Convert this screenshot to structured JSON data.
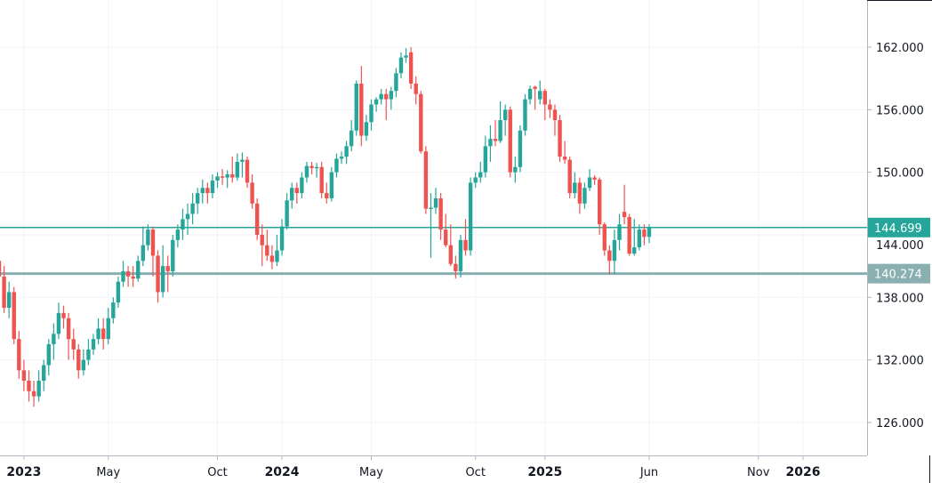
{
  "chart_data": {
    "type": "candlestick",
    "interval": "weekly",
    "colors": {
      "up": "#26a69a",
      "down": "#ef5350",
      "line_upper": "#26a69a",
      "line_lower": "#8aafb1",
      "grid": "#f0f3fa"
    },
    "ylim": [
      122,
      166
    ],
    "y_ticks": [
      "162.000",
      "156.000",
      "150.000",
      "144.000",
      "138.000",
      "132.000",
      "126.000"
    ],
    "x_ticks": [
      {
        "label": "2023",
        "date": "2023-01-02",
        "bold": true
      },
      {
        "label": "May",
        "date": "2023-05-01",
        "bold": false
      },
      {
        "label": "Oct",
        "date": "2023-10-02",
        "bold": false
      },
      {
        "label": "2024",
        "date": "2024-01-01",
        "bold": true
      },
      {
        "label": "May",
        "date": "2024-05-06",
        "bold": false
      },
      {
        "label": "Oct",
        "date": "2024-09-30",
        "bold": false
      },
      {
        "label": "2025",
        "date": "2025-01-06",
        "bold": true
      },
      {
        "label": "Jun",
        "date": "2025-06-02",
        "bold": false
      },
      {
        "label": "Nov",
        "date": "2025-11-03",
        "bold": false
      },
      {
        "label": "2026",
        "date": "2026-01-05",
        "bold": true
      }
    ],
    "horizontal_lines": [
      {
        "value": 144.699,
        "label": "144.699",
        "color": "#26a69a"
      },
      {
        "value": 140.274,
        "label": "140.274",
        "color": "#8aafb1"
      }
    ],
    "candles_columns": [
      "date",
      "open",
      "high",
      "low",
      "close"
    ],
    "candles": [
      [
        "2022-11-28",
        141.5,
        142,
        139.2,
        140
      ],
      [
        "2022-12-05",
        140,
        141,
        136.5,
        137
      ],
      [
        "2022-12-12",
        137,
        139.5,
        136,
        138.5
      ],
      [
        "2022-12-19",
        138.5,
        139,
        133.5,
        134
      ],
      [
        "2022-12-26",
        134,
        134.8,
        130.2,
        131
      ],
      [
        "2023-01-02",
        131,
        132,
        129,
        130
      ],
      [
        "2023-01-09",
        130,
        131,
        128,
        129
      ],
      [
        "2023-01-16",
        129,
        130,
        127.5,
        128.5
      ],
      [
        "2023-01-23",
        128.5,
        131,
        128,
        130
      ],
      [
        "2023-01-30",
        130,
        132,
        129,
        131.5
      ],
      [
        "2023-02-06",
        131.5,
        134,
        130.5,
        133.5
      ],
      [
        "2023-02-13",
        133.5,
        135.5,
        132,
        134.5
      ],
      [
        "2023-02-20",
        134.5,
        137.5,
        134,
        136.5
      ],
      [
        "2023-02-27",
        136.5,
        137.2,
        135,
        136
      ],
      [
        "2023-03-06",
        136,
        136.5,
        132,
        134
      ],
      [
        "2023-03-13",
        134,
        135,
        132,
        133
      ],
      [
        "2023-03-20",
        133,
        133.5,
        130.2,
        131
      ],
      [
        "2023-03-27",
        131,
        133,
        130.5,
        132
      ],
      [
        "2023-04-03",
        132,
        134,
        131.5,
        133
      ],
      [
        "2023-04-10",
        133,
        134.5,
        132.5,
        134
      ],
      [
        "2023-04-17",
        134,
        136,
        133.5,
        135
      ],
      [
        "2023-04-24",
        135,
        136,
        133,
        134
      ],
      [
        "2023-05-01",
        134,
        137,
        133.5,
        136
      ],
      [
        "2023-05-08",
        136,
        138,
        135.5,
        137.5
      ],
      [
        "2023-05-15",
        137.5,
        140,
        137,
        139.5
      ],
      [
        "2023-05-22",
        139.5,
        141.5,
        139,
        140.5
      ],
      [
        "2023-05-29",
        140.5,
        141,
        139,
        140
      ],
      [
        "2023-06-05",
        140,
        141,
        139,
        139.8
      ],
      [
        "2023-06-12",
        139.8,
        142,
        139.5,
        141.5
      ],
      [
        "2023-06-19",
        141.5,
        144.8,
        141,
        143
      ],
      [
        "2023-06-26",
        143,
        145,
        142.5,
        144.5
      ],
      [
        "2023-07-03",
        144.5,
        144.8,
        140,
        142
      ],
      [
        "2023-07-10",
        142,
        142.5,
        137.5,
        138.5
      ],
      [
        "2023-07-17",
        138.5,
        143,
        138,
        141
      ],
      [
        "2023-07-24",
        141,
        142,
        138.5,
        140.5
      ],
      [
        "2023-07-31",
        140.5,
        144,
        140,
        143.5
      ],
      [
        "2023-08-07",
        143.5,
        145,
        142.8,
        144.5
      ],
      [
        "2023-08-14",
        144.5,
        146.5,
        143.5,
        145.5
      ],
      [
        "2023-08-21",
        145.5,
        147,
        144,
        146
      ],
      [
        "2023-08-28",
        146,
        148,
        145,
        147
      ],
      [
        "2023-09-04",
        147,
        148.5,
        146,
        148
      ],
      [
        "2023-09-11",
        148,
        149.3,
        147,
        148.5
      ],
      [
        "2023-09-18",
        148.5,
        149,
        147,
        148
      ],
      [
        "2023-09-25",
        148,
        149.8,
        147.5,
        149.2
      ],
      [
        "2023-10-02",
        149.2,
        150,
        148.5,
        149.6
      ],
      [
        "2023-10-09",
        149.6,
        150.3,
        148.8,
        149.5
      ],
      [
        "2023-10-16",
        149.5,
        150.2,
        148.5,
        149.8
      ],
      [
        "2023-10-23",
        149.8,
        151.5,
        149,
        149.5
      ],
      [
        "2023-10-30",
        149.5,
        151.8,
        149.2,
        151
      ],
      [
        "2023-11-06",
        151,
        151.9,
        149.5,
        151.2
      ],
      [
        "2023-11-13",
        151.2,
        151.5,
        148.5,
        149
      ],
      [
        "2023-11-20",
        149,
        149.8,
        146.5,
        147
      ],
      [
        "2023-11-27",
        147,
        147.5,
        143.5,
        144
      ],
      [
        "2023-12-04",
        144,
        145,
        141,
        143
      ],
      [
        "2023-12-11",
        143,
        144.5,
        141.5,
        142
      ],
      [
        "2023-12-18",
        142,
        143,
        140.7,
        141.4
      ],
      [
        "2023-12-25",
        141.4,
        144,
        141,
        142.5
      ],
      [
        "2024-01-01",
        142.5,
        145.5,
        142,
        144.8
      ],
      [
        "2024-01-08",
        144.8,
        148,
        144.5,
        147.3
      ],
      [
        "2024-01-15",
        147.3,
        149,
        146.5,
        148.5
      ],
      [
        "2024-01-22",
        148.5,
        149,
        147,
        148
      ],
      [
        "2024-01-29",
        148,
        150,
        147.5,
        149.5
      ],
      [
        "2024-02-05",
        149.5,
        151,
        149,
        150.6
      ],
      [
        "2024-02-12",
        150.6,
        151,
        149.8,
        150.4
      ],
      [
        "2024-02-19",
        150.4,
        150.9,
        149.5,
        150.5
      ],
      [
        "2024-02-26",
        150.5,
        151,
        147.5,
        148
      ],
      [
        "2024-03-04",
        148,
        149,
        147,
        147.5
      ],
      [
        "2024-03-11",
        147.5,
        150.5,
        147.2,
        150
      ],
      [
        "2024-03-18",
        150,
        151.8,
        149.5,
        151.3
      ],
      [
        "2024-03-25",
        151.3,
        152,
        150.8,
        151.5
      ],
      [
        "2024-04-01",
        151.5,
        153,
        150.8,
        152.5
      ],
      [
        "2024-04-08",
        152.5,
        155,
        152,
        154
      ],
      [
        "2024-04-15",
        154,
        158.8,
        153.5,
        158.5
      ],
      [
        "2024-04-22",
        158.5,
        160.2,
        152.5,
        153.5
      ],
      [
        "2024-04-29",
        153.5,
        155.5,
        153,
        154.8
      ],
      [
        "2024-05-06",
        154.8,
        157,
        154,
        156.5
      ],
      [
        "2024-05-13",
        156.5,
        157.2,
        155.8,
        157
      ],
      [
        "2024-05-20",
        157,
        158,
        156.5,
        157.5
      ],
      [
        "2024-05-27",
        157.5,
        158,
        155,
        157
      ],
      [
        "2024-06-03",
        157,
        158.2,
        156,
        157.8
      ],
      [
        "2024-06-10",
        157.8,
        160,
        157.2,
        159.5
      ],
      [
        "2024-06-17",
        159.5,
        161.5,
        159,
        161
      ],
      [
        "2024-06-24",
        161,
        161.9,
        160.5,
        161.2
      ],
      [
        "2024-07-01",
        161.5,
        162,
        158,
        158.5
      ],
      [
        "2024-07-08",
        158.5,
        159.2,
        156.5,
        157.5
      ],
      [
        "2024-07-15",
        157.5,
        157.8,
        151.8,
        152
      ],
      [
        "2024-07-22",
        152,
        152.5,
        146,
        146.5
      ],
      [
        "2024-07-29",
        146.5,
        148,
        141.8,
        146.6
      ],
      [
        "2024-08-05",
        146.6,
        148.5,
        146,
        147.5
      ],
      [
        "2024-08-12",
        147.5,
        148,
        143.5,
        144.5
      ],
      [
        "2024-08-19",
        144.5,
        146,
        142.8,
        143
      ],
      [
        "2024-08-26",
        143,
        145,
        141,
        141.2
      ],
      [
        "2024-09-02",
        141.2,
        142,
        139.8,
        140.5
      ],
      [
        "2024-09-09",
        140.5,
        144,
        139.9,
        143.5
      ],
      [
        "2024-09-16",
        143.5,
        145.5,
        142,
        142.5
      ],
      [
        "2024-09-23",
        142.5,
        149.5,
        142,
        149
      ],
      [
        "2024-09-30",
        149,
        150,
        148.5,
        149.5
      ],
      [
        "2024-10-07",
        149.5,
        151,
        149,
        150
      ],
      [
        "2024-10-14",
        150,
        153.5,
        149.5,
        152.5
      ],
      [
        "2024-10-21",
        152.5,
        154.5,
        151,
        153.2
      ],
      [
        "2024-10-28",
        153.2,
        155,
        152.5,
        153
      ],
      [
        "2024-11-04",
        153,
        156.8,
        152.8,
        155
      ],
      [
        "2024-11-11",
        155,
        156.5,
        153.5,
        156
      ],
      [
        "2024-11-18",
        156,
        156.3,
        149.5,
        150
      ],
      [
        "2024-11-25",
        150,
        151.5,
        149,
        150.5
      ],
      [
        "2024-12-02",
        150.5,
        154.5,
        150,
        154
      ],
      [
        "2024-12-09",
        154,
        157.5,
        153.5,
        157
      ],
      [
        "2024-12-16",
        157,
        158.3,
        156.5,
        158
      ],
      [
        "2024-12-23",
        158.2,
        158.3,
        156,
        158
      ],
      [
        "2024-12-30",
        157,
        158.8,
        156.5,
        157.8
      ],
      [
        "2025-01-06",
        157.8,
        158,
        155,
        156.5
      ],
      [
        "2025-01-13",
        156.5,
        157,
        155.2,
        156
      ],
      [
        "2025-01-20",
        156,
        156.5,
        153.5,
        155
      ],
      [
        "2025-01-27",
        155,
        155.5,
        151,
        151.5
      ],
      [
        "2025-02-03",
        151.5,
        153,
        150.8,
        151.2
      ],
      [
        "2025-02-10",
        151.2,
        151.5,
        147.5,
        148
      ],
      [
        "2025-02-17",
        148,
        150,
        147.5,
        149
      ],
      [
        "2025-02-24",
        149,
        149.5,
        146,
        147
      ],
      [
        "2025-03-03",
        147,
        149,
        146.5,
        148.5
      ],
      [
        "2025-03-10",
        148.5,
        150.3,
        148.2,
        149.5
      ],
      [
        "2025-03-17",
        149.5,
        149.7,
        148.8,
        149.3
      ],
      [
        "2025-03-24",
        149.3,
        149.5,
        144,
        145
      ],
      [
        "2025-03-31",
        145,
        145.2,
        142,
        142.5
      ],
      [
        "2025-04-07",
        142.5,
        143,
        140.2,
        141.5
      ],
      [
        "2025-04-14",
        141.5,
        144.5,
        140.2,
        143.5
      ],
      [
        "2025-04-21",
        143.5,
        146,
        142.5,
        145
      ],
      [
        "2025-04-28",
        146.2,
        148.8,
        145,
        145.7
      ],
      [
        "2025-05-05",
        145.7,
        146,
        142,
        142.2
      ],
      [
        "2025-05-12",
        142.2,
        145.5,
        142,
        142.8
      ],
      [
        "2025-05-19",
        142.8,
        145,
        142.5,
        144.5
      ],
      [
        "2025-05-26",
        144.5,
        145,
        143,
        143.8
      ],
      [
        "2025-06-02",
        143.8,
        145,
        143.2,
        144.7
      ]
    ]
  }
}
